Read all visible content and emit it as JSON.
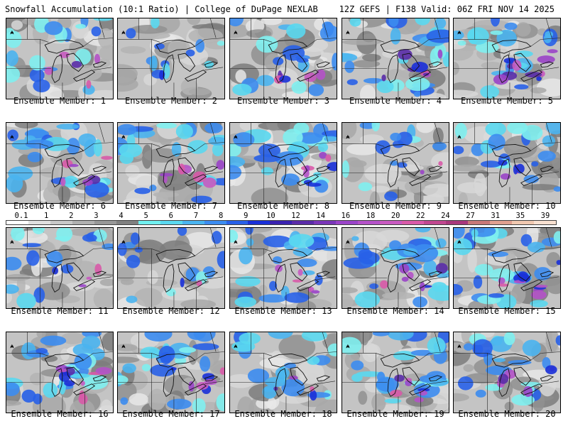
{
  "header": {
    "left": "Snowfall Accumulation (10:1 Ratio) | College of DuPage NEXLAB",
    "right": "12Z GEFS | F138 Valid: 06Z FRI NOV 14 2025"
  },
  "scale": {
    "labels": [
      "0.1",
      "1",
      "2",
      "3",
      "4",
      "5",
      "6",
      "7",
      "8",
      "9",
      "10",
      "12",
      "14",
      "16",
      "18",
      "20",
      "22",
      "24",
      "27",
      "31",
      "35",
      "39"
    ],
    "colors": [
      "#ffffff",
      "#e0e0e0",
      "#c8c8c8",
      "#b0b0b0",
      "#989898",
      "#808080",
      "#70f0f0",
      "#5ad8f0",
      "#4ab4f0",
      "#3c8cf0",
      "#2860e8",
      "#1a30d8",
      "#3a22b0",
      "#5a2ca8",
      "#7a36b8",
      "#9a44c8",
      "#b452c8",
      "#c85ac0",
      "#d85aa8",
      "#c04890",
      "#a8387c",
      "#c87878",
      "#e0a090",
      "#f0c8b0",
      "#f8e0d0"
    ]
  },
  "panels": [
    {
      "caption": "Ensemble Member: 1",
      "intensity": 0.55,
      "purple": 0.45
    },
    {
      "caption": "Ensemble Member: 2",
      "intensity": 0.25,
      "purple": 0.1
    },
    {
      "caption": "Ensemble Member: 3",
      "intensity": 0.55,
      "purple": 0.5
    },
    {
      "caption": "Ensemble Member: 4",
      "intensity": 0.85,
      "purple": 0.75
    },
    {
      "caption": "Ensemble Member: 5",
      "intensity": 0.6,
      "purple": 0.85
    },
    {
      "caption": "Ensemble Member: 6",
      "intensity": 0.75,
      "purple": 0.55
    },
    {
      "caption": "Ensemble Member: 7",
      "intensity": 0.7,
      "purple": 0.55
    },
    {
      "caption": "Ensemble Member: 8",
      "intensity": 0.8,
      "purple": 0.7
    },
    {
      "caption": "Ensemble Member: 9",
      "intensity": 0.35,
      "purple": 0.2
    },
    {
      "caption": "Ensemble Member: 10",
      "intensity": 0.6,
      "purple": 0.4
    },
    {
      "caption": "Ensemble Member: 11",
      "intensity": 0.45,
      "purple": 0.3
    },
    {
      "caption": "Ensemble Member: 12",
      "intensity": 0.3,
      "purple": 0.15
    },
    {
      "caption": "Ensemble Member: 13",
      "intensity": 0.8,
      "purple": 0.4
    },
    {
      "caption": "Ensemble Member: 14",
      "intensity": 0.85,
      "purple": 0.6
    },
    {
      "caption": "Ensemble Member: 15",
      "intensity": 0.8,
      "purple": 0.85
    },
    {
      "caption": "Ensemble Member: 16",
      "intensity": 0.7,
      "purple": 0.8
    },
    {
      "caption": "Ensemble Member: 17",
      "intensity": 0.75,
      "purple": 0.55
    },
    {
      "caption": "Ensemble Member: 18",
      "intensity": 0.7,
      "purple": 0.35
    },
    {
      "caption": "Ensemble Member: 19",
      "intensity": 0.75,
      "purple": 0.55
    },
    {
      "caption": "Ensemble Member: 20",
      "intensity": 0.7,
      "purple": 0.5
    }
  ]
}
